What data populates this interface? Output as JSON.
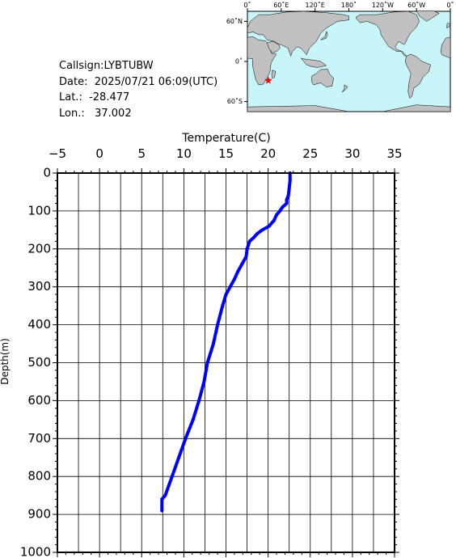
{
  "info": {
    "callsign": "Callsign:LYBTUBW",
    "date": "Date:  2025/07/21 06:09(UTC)",
    "lat": "Lat.:  -28.477",
    "lon": "Lon.:   37.002"
  },
  "map": {
    "lon_labels": [
      "0˚",
      "60˚E",
      "120˚E",
      "180˚",
      "120˚W",
      "60˚W",
      "0˚"
    ],
    "lat_labels": [
      "60˚N",
      "0˚",
      "60˚S"
    ],
    "station": {
      "lat": -28.477,
      "lon": 37.002
    },
    "colors": {
      "ocean": "#c8f5fa",
      "land": "#c0c0c0",
      "marker": "#ff0000"
    }
  },
  "chart_data": {
    "type": "line",
    "title": "",
    "xlabel": "Temperature(C)",
    "ylabel": "Depth(m)",
    "xlim": [
      -5,
      35
    ],
    "ylim": [
      0,
      1000
    ],
    "x_ticks": [
      -5,
      0,
      5,
      10,
      15,
      20,
      25,
      30,
      35
    ],
    "y_ticks": [
      0,
      100,
      200,
      300,
      400,
      500,
      600,
      700,
      800,
      900,
      1000
    ],
    "grid": true,
    "series": [
      {
        "color": "#0000ff",
        "points": [
          {
            "depth": 0,
            "temp": 22.6
          },
          {
            "depth": 20,
            "temp": 22.6
          },
          {
            "depth": 40,
            "temp": 22.5
          },
          {
            "depth": 60,
            "temp": 22.4
          },
          {
            "depth": 70,
            "temp": 22.2
          },
          {
            "depth": 80,
            "temp": 22.2
          },
          {
            "depth": 90,
            "temp": 21.7
          },
          {
            "depth": 100,
            "temp": 21.4
          },
          {
            "depth": 110,
            "temp": 21.0
          },
          {
            "depth": 125,
            "temp": 20.7
          },
          {
            "depth": 140,
            "temp": 20.1
          },
          {
            "depth": 150,
            "temp": 19.3
          },
          {
            "depth": 160,
            "temp": 18.7
          },
          {
            "depth": 170,
            "temp": 18.3
          },
          {
            "depth": 180,
            "temp": 17.8
          },
          {
            "depth": 200,
            "temp": 17.5
          },
          {
            "depth": 220,
            "temp": 17.4
          },
          {
            "depth": 240,
            "temp": 16.9
          },
          {
            "depth": 260,
            "temp": 16.4
          },
          {
            "depth": 280,
            "temp": 16.0
          },
          {
            "depth": 300,
            "temp": 15.5
          },
          {
            "depth": 320,
            "temp": 15.0
          },
          {
            "depth": 350,
            "temp": 14.6
          },
          {
            "depth": 400,
            "temp": 14.0
          },
          {
            "depth": 450,
            "temp": 13.5
          },
          {
            "depth": 500,
            "temp": 12.8
          },
          {
            "depth": 550,
            "temp": 12.4
          },
          {
            "depth": 600,
            "temp": 11.8
          },
          {
            "depth": 650,
            "temp": 11.1
          },
          {
            "depth": 700,
            "temp": 10.2
          },
          {
            "depth": 750,
            "temp": 9.4
          },
          {
            "depth": 800,
            "temp": 8.6
          },
          {
            "depth": 850,
            "temp": 7.8
          },
          {
            "depth": 860,
            "temp": 7.4
          },
          {
            "depth": 890,
            "temp": 7.4
          }
        ]
      }
    ]
  }
}
